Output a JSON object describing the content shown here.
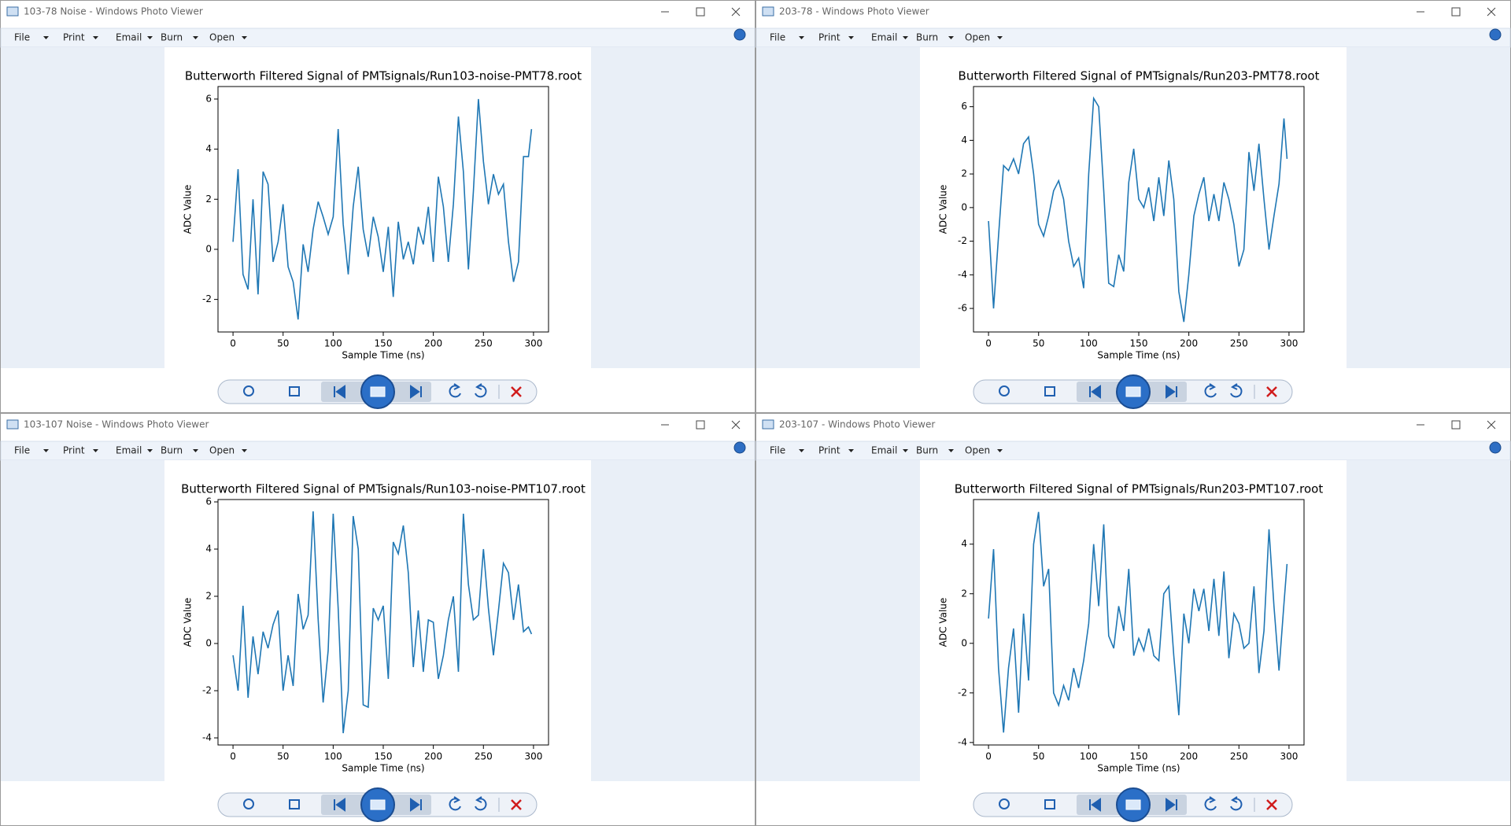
{
  "windows": [
    {
      "title": "103-78 Noise - Windows Photo Viewer",
      "menu": [
        "File",
        "Print",
        "Email",
        "Burn",
        "Open"
      ]
    },
    {
      "title": "203-78 - Windows Photo Viewer",
      "menu": [
        "File",
        "Print",
        "Email",
        "Burn",
        "Open"
      ]
    },
    {
      "title": "103-107 Noise - Windows Photo Viewer",
      "menu": [
        "File",
        "Print",
        "Email",
        "Burn",
        "Open"
      ]
    },
    {
      "title": "203-107 - Windows Photo Viewer",
      "menu": [
        "File",
        "Print",
        "Email",
        "Burn",
        "Open"
      ]
    }
  ],
  "chart_data": [
    {
      "type": "line",
      "title": "Butterworth Filtered Signal of PMTsignals/Run103-noise-PMT78.root",
      "xlabel": "Sample Time (ns)",
      "ylabel": "ADC Value",
      "color": "#1f77b4",
      "x": [
        0,
        5,
        10,
        15,
        20,
        25,
        30,
        35,
        40,
        45,
        50,
        55,
        60,
        65,
        70,
        75,
        80,
        85,
        90,
        95,
        100,
        105,
        110,
        115,
        120,
        125,
        130,
        135,
        140,
        145,
        150,
        155,
        160,
        165,
        170,
        175,
        180,
        185,
        190,
        195,
        200,
        205,
        210,
        215,
        220,
        225,
        230,
        235,
        240,
        245,
        250,
        255,
        260,
        265,
        270,
        275,
        280,
        285,
        290,
        295,
        298
      ],
      "values": [
        0.3,
        3.2,
        -1.0,
        -1.6,
        2.0,
        -1.8,
        3.1,
        2.6,
        -0.5,
        0.3,
        1.8,
        -0.7,
        -1.3,
        -2.8,
        0.2,
        -0.9,
        0.8,
        1.9,
        1.3,
        0.6,
        1.3,
        4.8,
        1.0,
        -1.0,
        1.7,
        3.3,
        0.8,
        -0.3,
        1.3,
        0.5,
        -0.9,
        0.9,
        -1.9,
        1.1,
        -0.4,
        0.3,
        -0.6,
        0.9,
        0.2,
        1.7,
        -0.5,
        2.9,
        1.7,
        -0.5,
        1.8,
        5.3,
        3.1,
        -0.8,
        2.3,
        6.0,
        3.5,
        1.8,
        3.0,
        2.2,
        2.6,
        0.3,
        -1.3,
        -0.5,
        3.7,
        3.7,
        4.8
      ],
      "xlim": [
        -15,
        315
      ],
      "ylim": [
        -3.3,
        6.5
      ],
      "xticks": [
        0,
        50,
        100,
        150,
        200,
        250,
        300
      ],
      "yticks": [
        -2,
        0,
        2,
        4,
        6
      ]
    },
    {
      "type": "line",
      "title": "Butterworth Filtered Signal of PMTsignals/Run203-PMT78.root",
      "xlabel": "Sample Time (ns)",
      "ylabel": "ADC Value",
      "color": "#1f77b4",
      "x": [
        0,
        5,
        10,
        15,
        20,
        25,
        30,
        35,
        40,
        45,
        50,
        55,
        60,
        65,
        70,
        75,
        80,
        85,
        90,
        95,
        100,
        105,
        110,
        115,
        120,
        125,
        130,
        135,
        140,
        145,
        150,
        155,
        160,
        165,
        170,
        175,
        180,
        185,
        190,
        195,
        200,
        205,
        210,
        215,
        220,
        225,
        230,
        235,
        240,
        245,
        250,
        255,
        260,
        265,
        270,
        275,
        280,
        285,
        290,
        295,
        298
      ],
      "values": [
        -0.8,
        -6.0,
        -1.7,
        2.5,
        2.2,
        2.9,
        2.0,
        3.8,
        4.2,
        2.0,
        -1.0,
        -1.7,
        -0.5,
        1.0,
        1.6,
        0.5,
        -2.0,
        -3.5,
        -3.0,
        -4.8,
        2.0,
        6.5,
        6.0,
        1.0,
        -4.5,
        -4.7,
        -2.8,
        -3.8,
        1.5,
        3.5,
        0.5,
        0.0,
        1.2,
        -0.8,
        1.8,
        -0.5,
        2.8,
        0.5,
        -5.0,
        -6.8,
        -4.0,
        -0.5,
        0.8,
        1.8,
        -0.8,
        0.8,
        -0.8,
        1.5,
        0.5,
        -1.0,
        -3.5,
        -2.5,
        3.3,
        1.0,
        3.8,
        0.5,
        -2.5,
        -0.5,
        1.4,
        5.3,
        2.9
      ],
      "xlim": [
        -15,
        315
      ],
      "ylim": [
        -7.4,
        7.2
      ],
      "xticks": [
        0,
        50,
        100,
        150,
        200,
        250,
        300
      ],
      "yticks": [
        -6,
        -4,
        -2,
        0,
        2,
        4,
        6
      ]
    },
    {
      "type": "line",
      "title": "Butterworth Filtered Signal of PMTsignals/Run103-noise-PMT107.root",
      "xlabel": "Sample Time (ns)",
      "ylabel": "ADC Value",
      "color": "#1f77b4",
      "x": [
        0,
        5,
        10,
        15,
        20,
        25,
        30,
        35,
        40,
        45,
        50,
        55,
        60,
        65,
        70,
        75,
        80,
        85,
        90,
        95,
        100,
        105,
        110,
        115,
        120,
        125,
        130,
        135,
        140,
        145,
        150,
        155,
        160,
        165,
        170,
        175,
        180,
        185,
        190,
        195,
        200,
        205,
        210,
        215,
        220,
        225,
        230,
        235,
        240,
        245,
        250,
        255,
        260,
        265,
        270,
        275,
        280,
        285,
        290,
        295,
        298
      ],
      "values": [
        -0.5,
        -2.0,
        1.6,
        -2.3,
        0.3,
        -1.3,
        0.5,
        -0.2,
        0.8,
        1.4,
        -2.0,
        -0.5,
        -1.8,
        2.1,
        0.6,
        1.2,
        5.6,
        1.0,
        -2.5,
        -0.3,
        5.5,
        1.5,
        -3.8,
        -2.0,
        5.4,
        4.0,
        -2.6,
        -2.7,
        1.5,
        1.0,
        1.6,
        -1.5,
        4.3,
        3.8,
        5.0,
        3.0,
        -1.0,
        1.4,
        -1.2,
        1.0,
        0.9,
        -1.5,
        -0.5,
        1.0,
        2.0,
        -1.2,
        5.5,
        2.5,
        1.0,
        1.2,
        4.0,
        1.5,
        -0.5,
        1.4,
        3.4,
        3.0,
        1.0,
        2.5,
        0.5,
        0.7,
        0.4
      ],
      "xlim": [
        -15,
        315
      ],
      "ylim": [
        -4.3,
        6.1
      ],
      "xticks": [
        0,
        50,
        100,
        150,
        200,
        250,
        300
      ],
      "yticks": [
        -4,
        -2,
        0,
        2,
        4,
        6
      ]
    },
    {
      "type": "line",
      "title": "Butterworth Filtered Signal of PMTsignals/Run203-PMT107.root",
      "xlabel": "Sample Time (ns)",
      "ylabel": "ADC Value",
      "color": "#1f77b4",
      "x": [
        0,
        5,
        10,
        15,
        20,
        25,
        30,
        35,
        40,
        45,
        50,
        55,
        60,
        65,
        70,
        75,
        80,
        85,
        90,
        95,
        100,
        105,
        110,
        115,
        120,
        125,
        130,
        135,
        140,
        145,
        150,
        155,
        160,
        165,
        170,
        175,
        180,
        185,
        190,
        195,
        200,
        205,
        210,
        215,
        220,
        225,
        230,
        235,
        240,
        245,
        250,
        255,
        260,
        265,
        270,
        275,
        280,
        285,
        290,
        295,
        298
      ],
      "values": [
        1.0,
        3.8,
        -1.0,
        -3.6,
        -1.0,
        0.6,
        -2.8,
        1.2,
        -1.5,
        4.0,
        5.3,
        2.3,
        3.0,
        -2.0,
        -2.5,
        -1.7,
        -2.3,
        -1.0,
        -1.8,
        -0.7,
        0.8,
        4.0,
        1.5,
        4.8,
        0.3,
        -0.2,
        1.5,
        0.5,
        3.0,
        -0.5,
        0.2,
        -0.3,
        0.6,
        -0.5,
        -0.7,
        2.0,
        2.3,
        -0.5,
        -2.9,
        1.2,
        0.0,
        2.2,
        1.3,
        2.2,
        0.5,
        2.6,
        0.3,
        2.9,
        -0.6,
        1.2,
        0.8,
        -0.2,
        0.0,
        2.3,
        -1.2,
        0.5,
        4.6,
        1.5,
        -1.1,
        1.6,
        3.2
      ],
      "xlim": [
        -15,
        315
      ],
      "ylim": [
        -4.1,
        5.8
      ],
      "xticks": [
        0,
        50,
        100,
        150,
        200,
        250,
        300
      ],
      "yticks": [
        -4,
        -2,
        0,
        2,
        4
      ]
    }
  ]
}
